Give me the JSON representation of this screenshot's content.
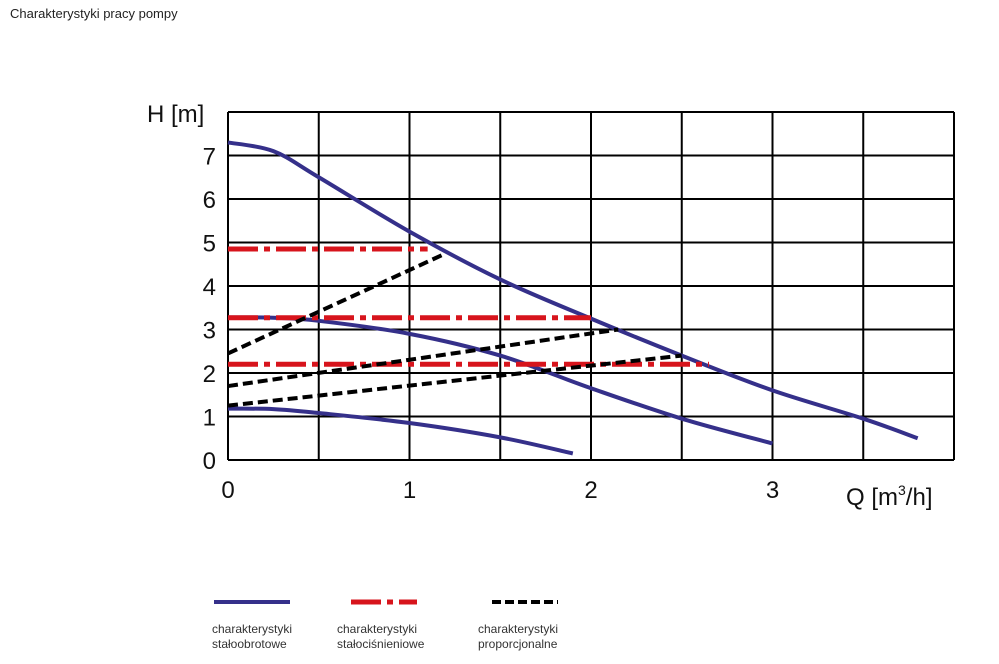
{
  "page": {
    "title": "Charakterystyki pracy pompy"
  },
  "chart_data": {
    "type": "line",
    "title": "",
    "ylabel": "H [m]",
    "xlabel_main": "Q [m",
    "xlabel_sup": "3",
    "xlabel_end": "/h]",
    "x_ticks": [
      "0",
      "1",
      "2",
      "3"
    ],
    "y_ticks": [
      "0",
      "1",
      "2",
      "3",
      "4",
      "5",
      "6",
      "7"
    ],
    "xlim": [
      0,
      4
    ],
    "ylim": [
      0,
      8
    ],
    "grid": true,
    "legend_position": "bottom",
    "series": [
      {
        "name": "charakterystyki stałoobrotowe",
        "style": "solid",
        "color": "#35308a",
        "x": [
          0.0,
          0.25,
          0.5,
          1.0,
          1.5,
          2.0,
          2.5,
          3.0,
          3.5,
          3.8
        ],
        "y": [
          7.3,
          7.1,
          6.5,
          5.25,
          4.15,
          3.25,
          2.4,
          1.6,
          0.95,
          0.5
        ]
      },
      {
        "name": "charakterystyki stałoobrotowe",
        "style": "solid",
        "color": "#35308a",
        "x": [
          0.0,
          0.25,
          0.5,
          1.0,
          1.5,
          2.0,
          2.5,
          3.0
        ],
        "y": [
          3.28,
          3.27,
          3.2,
          2.9,
          2.4,
          1.65,
          0.95,
          0.38
        ]
      },
      {
        "name": "charakterystyki stałoobrotowe",
        "style": "solid",
        "color": "#35308a",
        "x": [
          0.0,
          0.25,
          0.5,
          1.0,
          1.5,
          1.9
        ],
        "y": [
          1.18,
          1.17,
          1.08,
          0.85,
          0.52,
          0.15
        ]
      },
      {
        "name": "charakterystyki stałociśnieniowe",
        "style": "dashdot",
        "color": "#d7141c",
        "x": [
          0.0,
          1.1
        ],
        "y": [
          4.85,
          4.85
        ]
      },
      {
        "name": "charakterystyki stałociśnieniowe",
        "style": "dashdot",
        "color": "#d7141c",
        "x": [
          0.0,
          2.0
        ],
        "y": [
          3.27,
          3.27
        ]
      },
      {
        "name": "charakterystyki stałociśnieniowe",
        "style": "dashdot",
        "color": "#d7141c",
        "x": [
          0.0,
          2.65
        ],
        "y": [
          2.2,
          2.2
        ]
      },
      {
        "name": "charakterystyki proporcjonalne",
        "style": "dashed",
        "color": "#000000",
        "x": [
          0.0,
          1.2
        ],
        "y": [
          2.45,
          4.75
        ]
      },
      {
        "name": "charakterystyki proporcjonalne",
        "style": "dashed",
        "color": "#000000",
        "x": [
          0.0,
          2.15
        ],
        "y": [
          1.7,
          3.0
        ]
      },
      {
        "name": "charakterystyki proporcjonalne",
        "style": "dashed",
        "color": "#000000",
        "x": [
          0.0,
          2.5
        ],
        "y": [
          1.25,
          2.4
        ]
      }
    ]
  },
  "legend": {
    "items": [
      {
        "line1": "charakterystyki",
        "line2": "stałoobrotowe",
        "style": "solid",
        "color": "#35308a"
      },
      {
        "line1": "charakterystyki",
        "line2": "stałociśnieniowe",
        "style": "dashdot",
        "color": "#d7141c"
      },
      {
        "line1": "charakterystyki",
        "line2": "proporcjonalne",
        "style": "dashed",
        "color": "#000000"
      }
    ]
  }
}
